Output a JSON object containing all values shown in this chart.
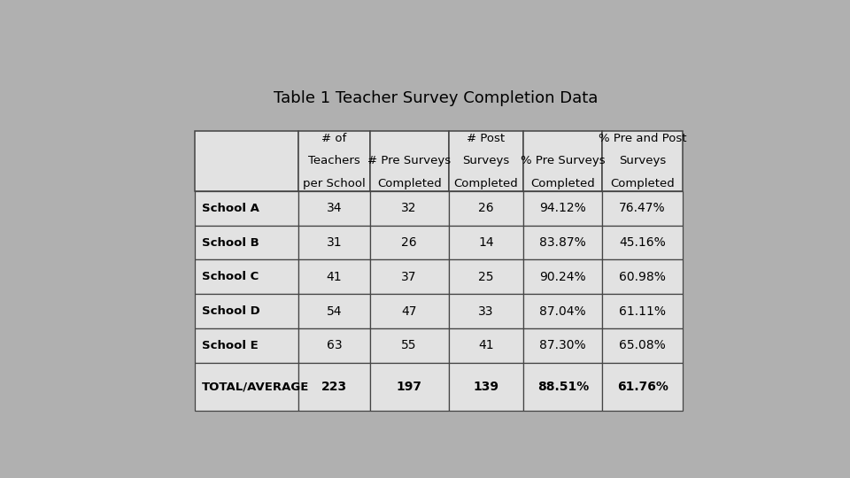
{
  "title": "Table 1 Teacher Survey Completion Data",
  "background_color": "#b0b0b0",
  "table_bg_light": "#e2e2e2",
  "border_color": "#444444",
  "col_headers_line1": [
    "# of",
    "",
    "# Post",
    "",
    "% Pre and Post"
  ],
  "col_headers_line2": [
    "Teachers",
    "# Pre Surveys",
    "Surveys",
    "% Pre Surveys",
    "Surveys"
  ],
  "col_headers_line3": [
    "per School",
    "Completed",
    "Completed",
    "Completed",
    "Completed"
  ],
  "row_labels": [
    "School A",
    "School B",
    "School C",
    "School D",
    "School E",
    "TOTAL/AVERAGE"
  ],
  "data": [
    [
      "34",
      "32",
      "26",
      "94.12%",
      "76.47%"
    ],
    [
      "31",
      "26",
      "14",
      "83.87%",
      "45.16%"
    ],
    [
      "41",
      "37",
      "25",
      "90.24%",
      "60.98%"
    ],
    [
      "54",
      "47",
      "33",
      "87.04%",
      "61.11%"
    ],
    [
      "63",
      "55",
      "41",
      "87.30%",
      "65.08%"
    ],
    [
      "223",
      "197",
      "139",
      "88.51%",
      "61.76%"
    ]
  ],
  "title_fontsize": 13,
  "header_fontsize": 9.5,
  "cell_fontsize": 10,
  "label_fontsize": 9.5
}
